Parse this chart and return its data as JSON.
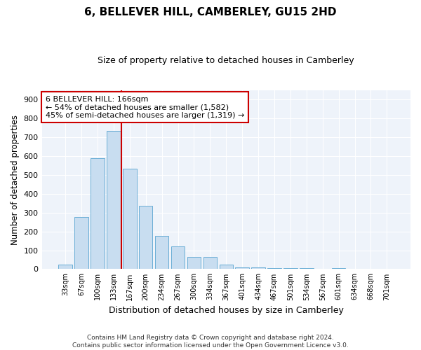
{
  "title": "6, BELLEVER HILL, CAMBERLEY, GU15 2HD",
  "subtitle": "Size of property relative to detached houses in Camberley",
  "xlabel": "Distribution of detached houses by size in Camberley",
  "ylabel": "Number of detached properties",
  "bar_color": "#c8ddf0",
  "bar_edge_color": "#6aaed6",
  "background_color": "#eef3fa",
  "grid_color": "#ffffff",
  "categories": [
    "33sqm",
    "67sqm",
    "100sqm",
    "133sqm",
    "167sqm",
    "200sqm",
    "234sqm",
    "267sqm",
    "300sqm",
    "334sqm",
    "367sqm",
    "401sqm",
    "434sqm",
    "467sqm",
    "501sqm",
    "534sqm",
    "567sqm",
    "601sqm",
    "634sqm",
    "668sqm",
    "701sqm"
  ],
  "values": [
    25,
    275,
    590,
    735,
    535,
    335,
    175,
    120,
    65,
    65,
    25,
    10,
    10,
    5,
    5,
    5,
    0,
    5,
    0,
    0,
    0
  ],
  "marker_color": "#cc0000",
  "annotation_text": "6 BELLEVER HILL: 166sqm\n← 54% of detached houses are smaller (1,582)\n45% of semi-detached houses are larger (1,319) →",
  "annotation_box_color": "#ffffff",
  "annotation_box_edge": "#cc0000",
  "ylim": [
    0,
    950
  ],
  "yticks": [
    0,
    100,
    200,
    300,
    400,
    500,
    600,
    700,
    800,
    900
  ],
  "footer_line1": "Contains HM Land Registry data © Crown copyright and database right 2024.",
  "footer_line2": "Contains public sector information licensed under the Open Government Licence v3.0."
}
